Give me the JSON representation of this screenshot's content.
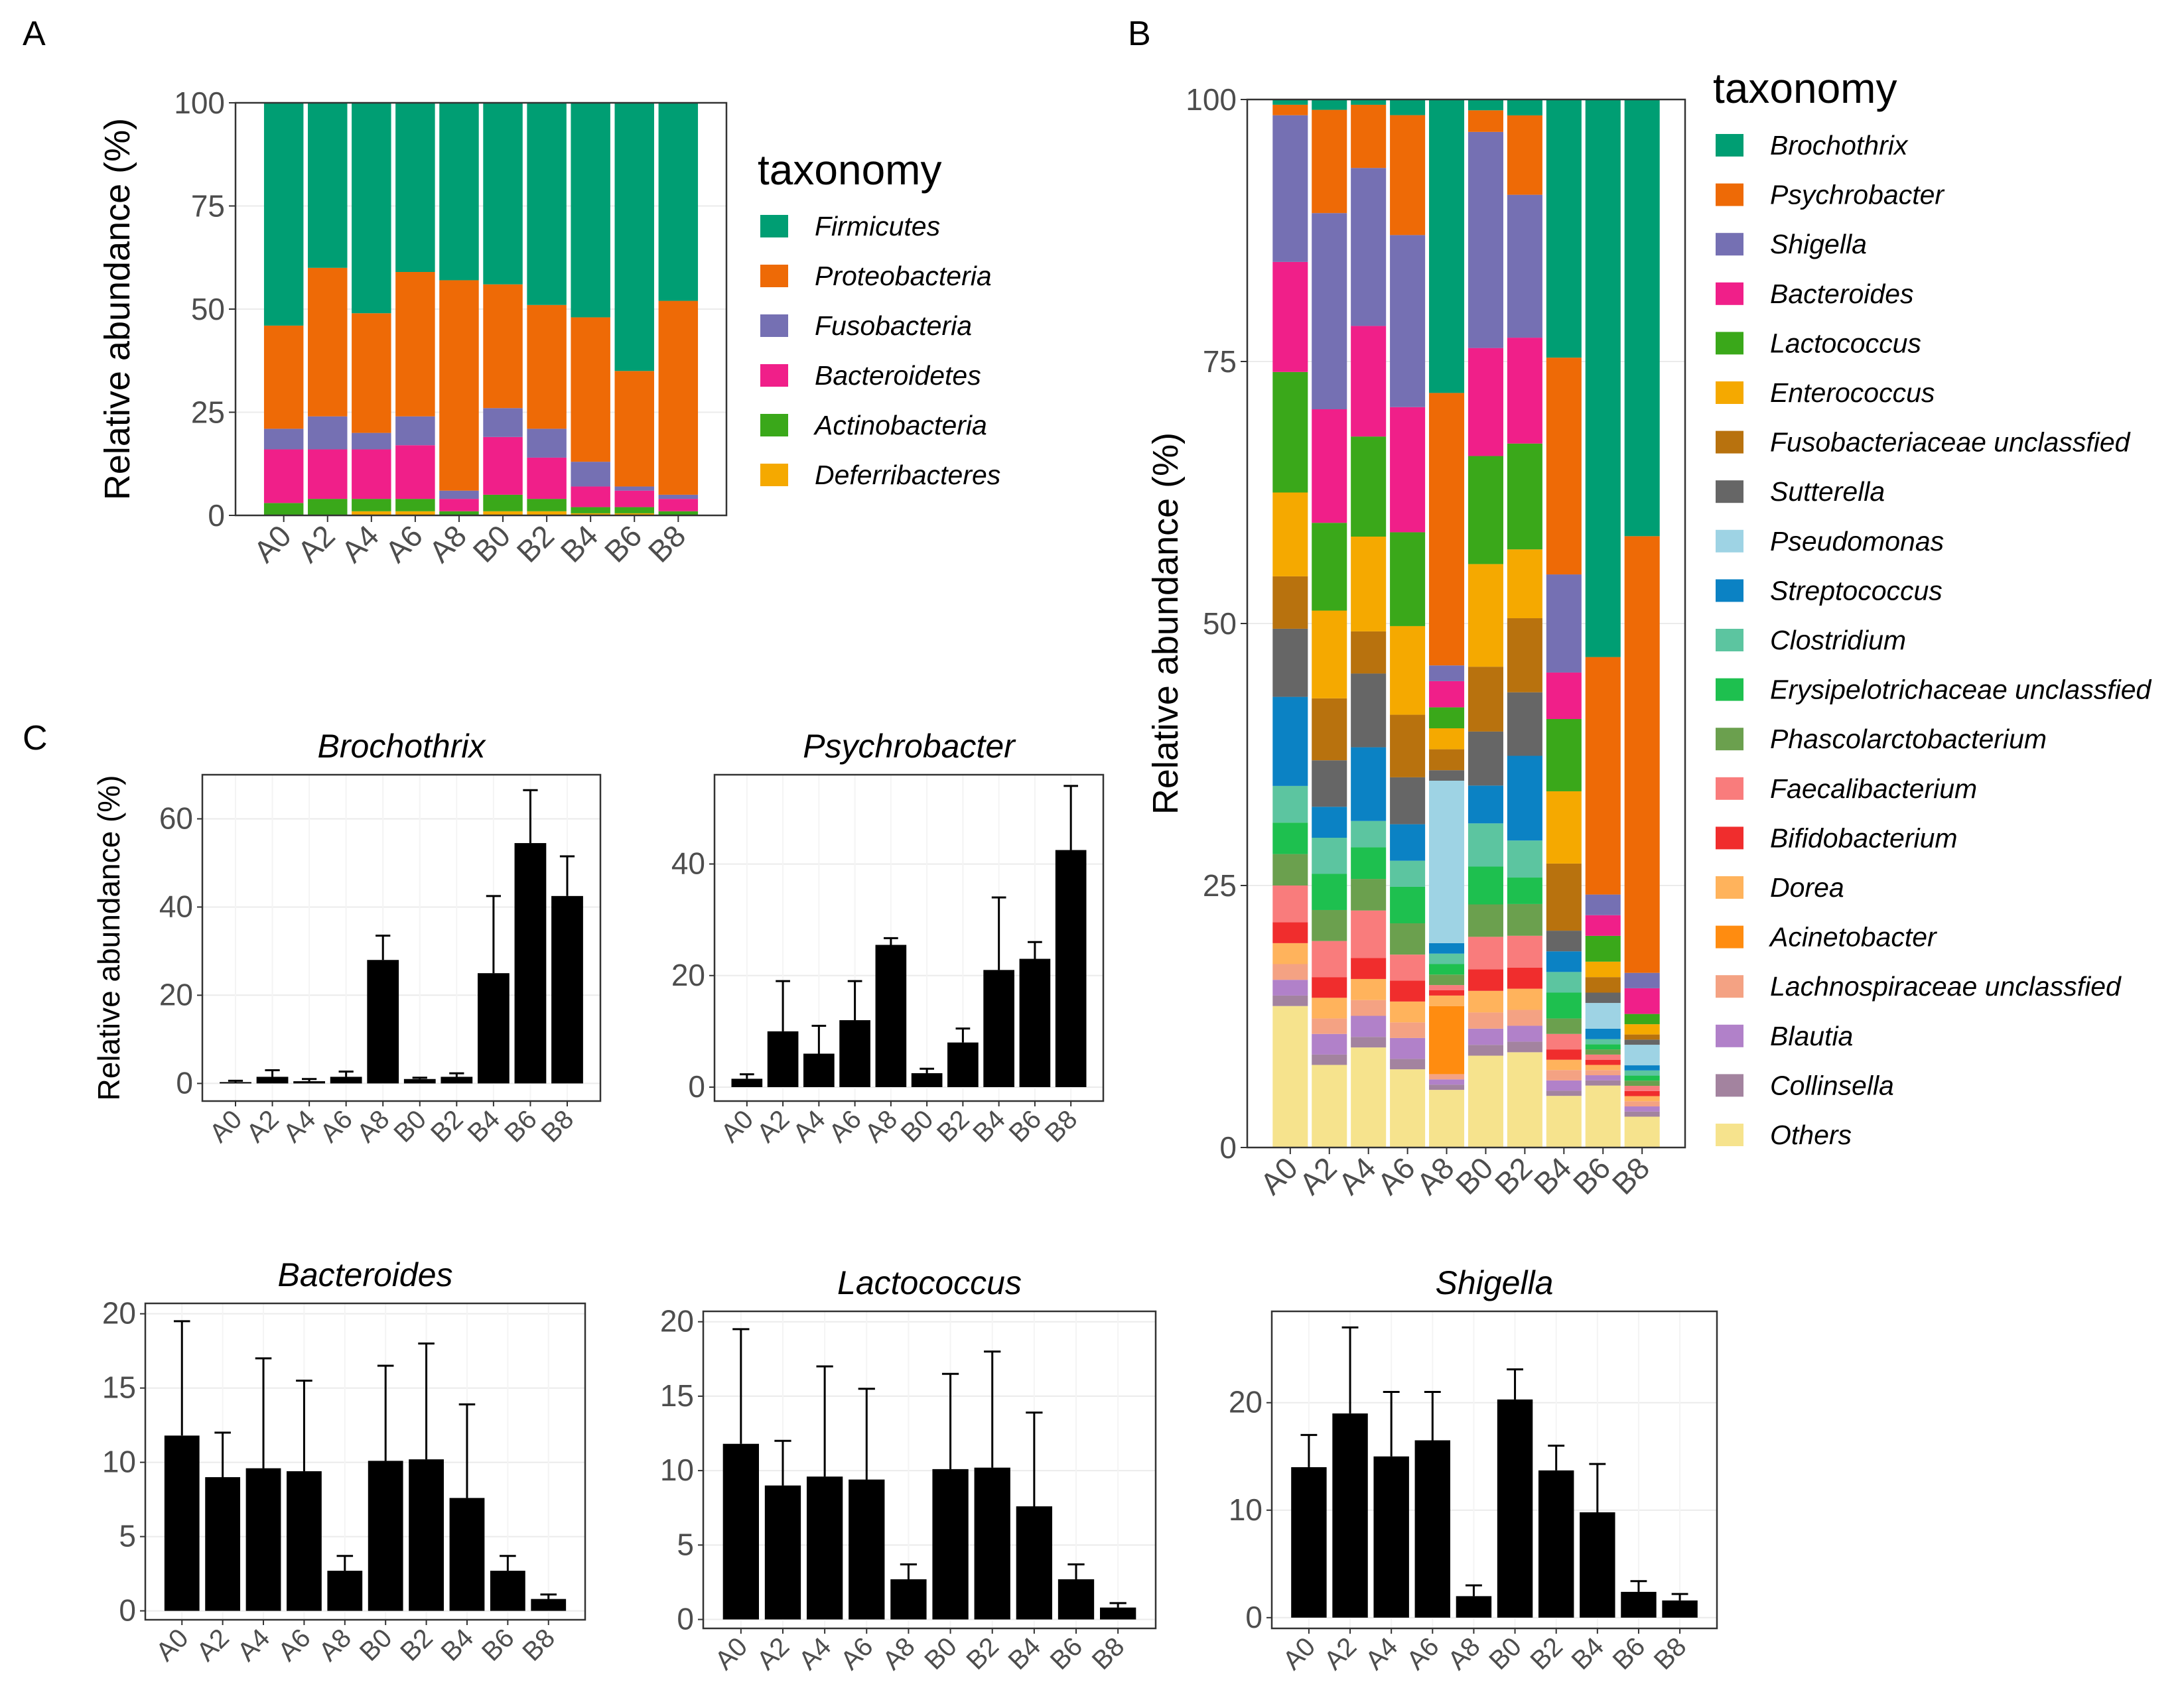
{
  "panels": {
    "a": "A",
    "b": "B",
    "c": "C"
  },
  "taxonomy_title": "taxonomy",
  "ylabel": "Relative abundance (%)",
  "chart_data": [
    {
      "id": "A",
      "type": "bar",
      "stacked": true,
      "title": "",
      "xlabel": "",
      "ylabel": "Relative abundance (%)",
      "ylim": [
        0,
        100
      ],
      "yticks": [
        0,
        25,
        50,
        75,
        100
      ],
      "legend_title": "taxonomy",
      "categories": [
        "A0",
        "A2",
        "A4",
        "A6",
        "A8",
        "B0",
        "B2",
        "B4",
        "B6",
        "B8"
      ],
      "series": [
        {
          "name": "Firmicutes",
          "color": "#009E73",
          "values": [
            54,
            40,
            51,
            41,
            43,
            44,
            49,
            52,
            65,
            48
          ]
        },
        {
          "name": "Proteobacteria",
          "color": "#EE6A06",
          "values": [
            25,
            36,
            29,
            35,
            51,
            30,
            30,
            35,
            28,
            47
          ]
        },
        {
          "name": "Fusobacteria",
          "color": "#7570B3",
          "values": [
            5,
            8,
            4,
            7,
            2,
            7,
            7,
            6,
            1,
            1
          ]
        },
        {
          "name": "Bacteroidetes",
          "color": "#F01F89",
          "values": [
            13,
            12,
            12,
            13,
            3,
            14,
            10,
            5,
            4,
            3
          ]
        },
        {
          "name": "Actinobacteria",
          "color": "#3AA81A",
          "values": [
            3,
            4,
            3,
            3,
            1,
            4,
            3,
            1.5,
            1.5,
            1
          ]
        },
        {
          "name": "Deferribacteres",
          "color": "#F5A900",
          "values": [
            0,
            0,
            1,
            1,
            0,
            1,
            1,
            0.5,
            0.5,
            0
          ]
        }
      ]
    },
    {
      "id": "B",
      "type": "bar",
      "stacked": true,
      "title": "",
      "xlabel": "",
      "ylabel": "Relative abundance (%)",
      "ylim": [
        0,
        100
      ],
      "yticks": [
        0,
        25,
        50,
        75,
        100
      ],
      "legend_title": "taxonomy",
      "categories": [
        "A0",
        "A2",
        "A4",
        "A6",
        "A8",
        "B0",
        "B2",
        "B4",
        "B6",
        "B8"
      ],
      "series": [
        {
          "name": "Brochothrix",
          "color": "#009E73",
          "values": [
            0.5,
            1,
            0.5,
            1.5,
            28,
            1,
            1.5,
            25,
            54,
            42.5
          ]
        },
        {
          "name": "Psychrobacter",
          "color": "#EE6A06",
          "values": [
            1,
            10,
            6,
            11.5,
            26,
            2,
            7.5,
            21,
            23,
            42.5
          ]
        },
        {
          "name": "Shigella",
          "color": "#7570B3",
          "values": [
            14,
            19,
            15,
            16.5,
            1.5,
            20,
            13.5,
            9.5,
            2,
            1.5
          ]
        },
        {
          "name": "Bacteroides",
          "color": "#F01F89",
          "values": [
            10.5,
            11,
            10.5,
            12,
            2.5,
            10,
            10,
            4.5,
            2,
            2.5
          ]
        },
        {
          "name": "Lactococcus",
          "color": "#3AA81A",
          "values": [
            11.5,
            8.5,
            9.5,
            9,
            2,
            10,
            10,
            7,
            2.5,
            1
          ]
        },
        {
          "name": "Enterococcus",
          "color": "#F5A900",
          "values": [
            8,
            8.5,
            9,
            8.5,
            2,
            9.5,
            6.5,
            7,
            1.5,
            1
          ]
        },
        {
          "name": "Fusobacteriaceae unclassfied",
          "color": "#B8720E",
          "values": [
            5,
            6,
            4,
            6,
            2,
            6,
            7,
            6.5,
            1.5,
            0.5
          ]
        },
        {
          "name": "Sutterella",
          "color": "#666666",
          "values": [
            6.5,
            4.5,
            7,
            4.5,
            1,
            5,
            6,
            2,
            1,
            0.5
          ]
        },
        {
          "name": "Pseudomonas",
          "color": "#9ED3E4",
          "values": [
            0,
            0,
            0,
            0,
            15.5,
            0,
            0,
            0,
            2.5,
            2
          ]
        },
        {
          "name": "Streptococcus",
          "color": "#0B82C4",
          "values": [
            8.5,
            3,
            7,
            3.5,
            1,
            3.5,
            8,
            2,
            1,
            0.5
          ]
        },
        {
          "name": "Clostridium",
          "color": "#5CC5A0",
          "values": [
            3.5,
            3.5,
            2.5,
            2.5,
            1,
            4,
            3.5,
            2,
            0.5,
            0.5
          ]
        },
        {
          "name": "Erysipelotrichaceae unclassfied",
          "color": "#1EC04F",
          "values": [
            3,
            3.5,
            3,
            3.5,
            1,
            3.5,
            2.5,
            2.5,
            0.5,
            0.5
          ]
        },
        {
          "name": "Phascolarctobacterium",
          "color": "#6BA04E",
          "values": [
            3,
            3,
            3,
            3,
            1,
            3,
            3,
            1.5,
            0.5,
            0.5
          ]
        },
        {
          "name": "Faecalibacterium",
          "color": "#F97C7C",
          "values": [
            3.5,
            3.5,
            4.5,
            2.5,
            0.5,
            3,
            3,
            1.5,
            0.5,
            0.5
          ]
        },
        {
          "name": "Bifidobacterium",
          "color": "#F02D2D",
          "values": [
            2,
            2,
            2,
            2,
            0.5,
            2,
            2,
            1,
            0.5,
            0.5
          ]
        },
        {
          "name": "Dorea",
          "color": "#FFB35C",
          "values": [
            2,
            2,
            2,
            2,
            1,
            2,
            2,
            1,
            0.5,
            0.5
          ]
        },
        {
          "name": "Acinetobacter",
          "color": "#FF8C10",
          "values": [
            0,
            0,
            0,
            0,
            6.5,
            0,
            0,
            0,
            0,
            0
          ]
        },
        {
          "name": "Lachnospiraceae unclassfied",
          "color": "#F4A283",
          "values": [
            1.5,
            1.5,
            1.5,
            1.5,
            0.5,
            1.5,
            1.5,
            1,
            0.5,
            0.5
          ]
        },
        {
          "name": "Blautia",
          "color": "#B181C9",
          "values": [
            1.5,
            2,
            2,
            2,
            0.5,
            1.5,
            1.5,
            1,
            0.5,
            0.5
          ]
        },
        {
          "name": "Collinsella",
          "color": "#A3839F",
          "values": [
            1,
            1,
            1,
            1,
            0.5,
            1,
            1,
            0.5,
            0.5,
            0.5
          ]
        },
        {
          "name": "Others",
          "color": "#F6E38D",
          "values": [
            13.5,
            8,
            9.5,
            7.5,
            5.5,
            8.5,
            9,
            5,
            6,
            3
          ]
        }
      ]
    },
    {
      "id": "C1",
      "type": "bar",
      "title": "Brochothrix",
      "xlabel": "",
      "ylabel": "Relative abundance (%)",
      "ylim": [
        -4,
        70
      ],
      "yticks": [
        0,
        20,
        40,
        60
      ],
      "categories": [
        "A0",
        "A2",
        "A4",
        "A6",
        "A8",
        "B0",
        "B2",
        "B4",
        "B6",
        "B8"
      ],
      "values": [
        0.3,
        1.5,
        0.5,
        1.5,
        28,
        1,
        1.5,
        25,
        54.5,
        42.5
      ],
      "errors": [
        0.3,
        1.5,
        0.5,
        1.2,
        5.5,
        0.3,
        0.8,
        17.5,
        12,
        9
      ]
    },
    {
      "id": "C2",
      "type": "bar",
      "title": "Psychrobacter",
      "xlabel": "",
      "ylabel": "",
      "ylim": [
        -2.5,
        56
      ],
      "yticks": [
        0,
        20,
        40
      ],
      "categories": [
        "A0",
        "A2",
        "A4",
        "A6",
        "A8",
        "B0",
        "B2",
        "B4",
        "B6",
        "B8"
      ],
      "values": [
        1.5,
        10,
        6,
        12,
        25.5,
        2.5,
        8,
        21,
        23,
        42.5
      ],
      "errors": [
        0.8,
        9,
        5,
        7,
        1.2,
        0.8,
        2.5,
        13,
        3,
        11.5
      ]
    },
    {
      "id": "C3",
      "type": "bar",
      "title": "Bacteroides",
      "xlabel": "",
      "ylabel": "",
      "ylim": [
        -0.6,
        20.7
      ],
      "yticks": [
        0,
        5,
        10,
        15,
        20
      ],
      "categories": [
        "A0",
        "A2",
        "A4",
        "A6",
        "A8",
        "B0",
        "B2",
        "B4",
        "B6",
        "B8"
      ],
      "values": [
        11.8,
        9,
        9.6,
        9.4,
        2.7,
        10.1,
        10.2,
        7.6,
        2.7,
        0.8
      ],
      "errors": [
        7.7,
        3,
        7.4,
        6.1,
        1,
        6.4,
        7.8,
        6.3,
        1,
        0.3
      ]
    },
    {
      "id": "C4",
      "type": "bar",
      "title": "Lactococcus",
      "xlabel": "",
      "ylabel": "",
      "ylim": [
        -0.6,
        20.7
      ],
      "yticks": [
        0,
        5,
        10,
        15,
        20
      ],
      "categories": [
        "A0",
        "A2",
        "A4",
        "A6",
        "A8",
        "B0",
        "B2",
        "B4",
        "B6",
        "B8"
      ],
      "values": [
        11.8,
        9,
        9.6,
        9.4,
        2.7,
        10.1,
        10.2,
        7.6,
        2.7,
        0.8
      ],
      "errors": [
        7.7,
        3,
        7.4,
        6.1,
        1,
        6.4,
        7.8,
        6.3,
        1,
        0.3
      ]
    },
    {
      "id": "C5",
      "type": "bar",
      "title": "Shigella",
      "xlabel": "",
      "ylabel": "",
      "ylim": [
        -1,
        28.5
      ],
      "yticks": [
        0,
        10,
        20
      ],
      "categories": [
        "A0",
        "A2",
        "A4",
        "A6",
        "A8",
        "B0",
        "B2",
        "B4",
        "B6",
        "B8"
      ],
      "values": [
        14,
        19,
        15,
        16.5,
        2,
        20.3,
        13.7,
        9.8,
        2.4,
        1.6
      ],
      "errors": [
        3,
        8,
        6,
        4.5,
        1,
        2.8,
        2.3,
        4.5,
        1,
        0.6
      ]
    }
  ]
}
